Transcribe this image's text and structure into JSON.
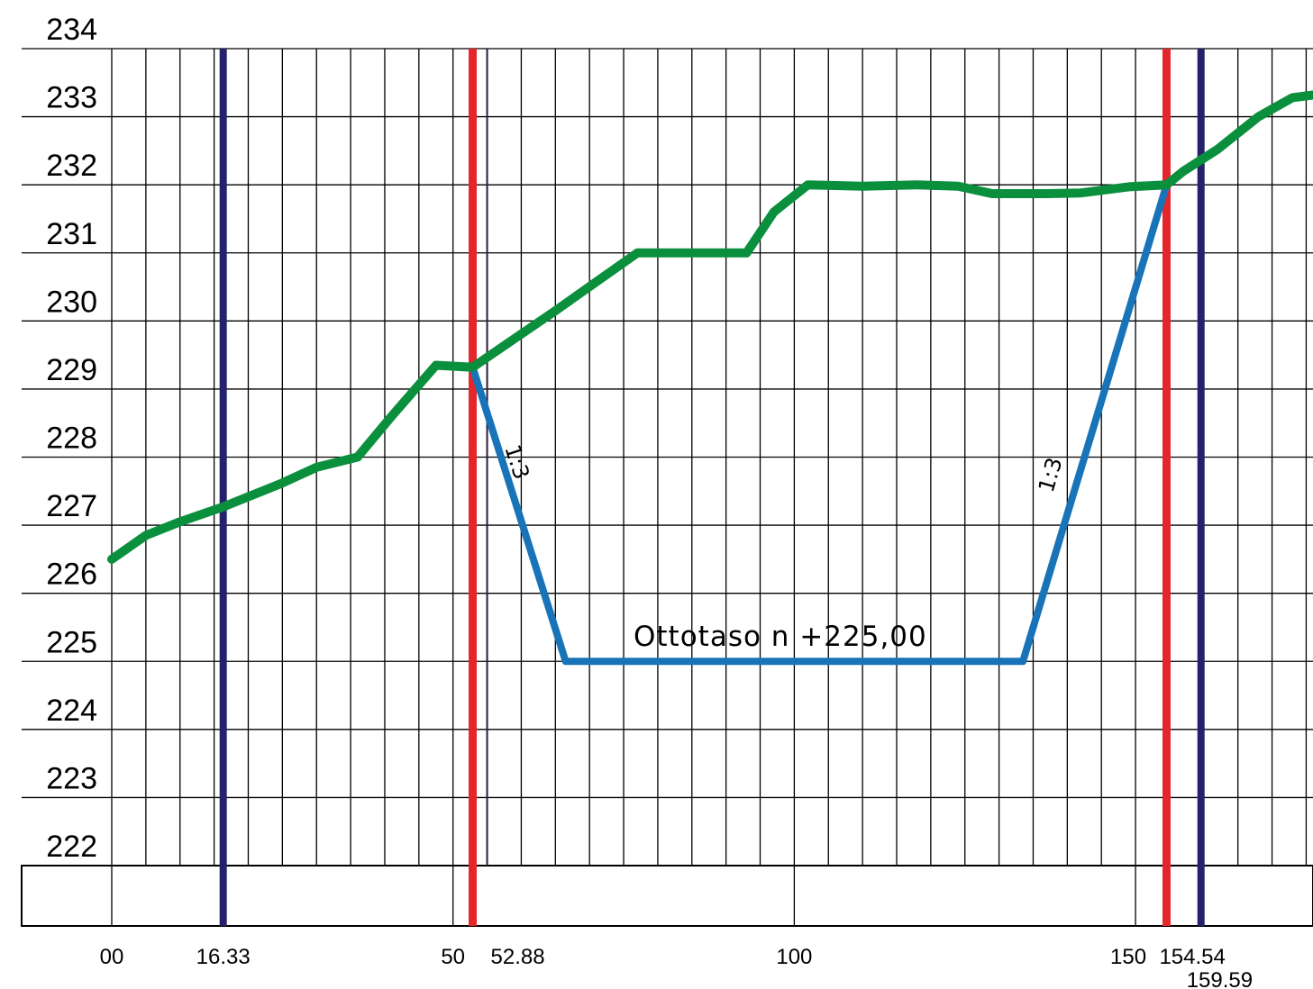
{
  "diagram": {
    "y_axis": {
      "min": 222,
      "max": 234,
      "tick_labels": [
        "234",
        "233",
        "232",
        "231",
        "230",
        "229",
        "228",
        "227",
        "226",
        "225",
        "224",
        "223",
        "222"
      ]
    },
    "x_axis": {
      "min": 0,
      "max": 176,
      "tick_labels": [
        {
          "value": 0,
          "label": "00"
        },
        {
          "value": 16.33,
          "label": "16.33"
        },
        {
          "value": 50,
          "label": "50"
        },
        {
          "value": 52.88,
          "label": "52.88"
        },
        {
          "value": 100,
          "label": "100"
        },
        {
          "value": 150,
          "label": "150"
        },
        {
          "value": 154.54,
          "label": "154.54"
        },
        {
          "value": 159.59,
          "label": "159.59"
        }
      ]
    },
    "ground_profile": {
      "color": "#0a8f3c",
      "points": [
        [
          0,
          226.5
        ],
        [
          5,
          226.85
        ],
        [
          10,
          227.05
        ],
        [
          16.33,
          227.27
        ],
        [
          25,
          227.62
        ],
        [
          30,
          227.85
        ],
        [
          36,
          228.0
        ],
        [
          41,
          228.6
        ],
        [
          47.5,
          229.35
        ],
        [
          52.88,
          229.32
        ],
        [
          65,
          230.15
        ],
        [
          77,
          231.0
        ],
        [
          83,
          231.0
        ],
        [
          93,
          231.0
        ],
        [
          97,
          231.6
        ],
        [
          102,
          232.0
        ],
        [
          110,
          231.98
        ],
        [
          118,
          232.0
        ],
        [
          124,
          231.98
        ],
        [
          129,
          231.87
        ],
        [
          137,
          231.87
        ],
        [
          142,
          231.88
        ],
        [
          149,
          231.97
        ],
        [
          154.54,
          232.0
        ],
        [
          157,
          232.2
        ],
        [
          162,
          232.52
        ],
        [
          168,
          233.0
        ],
        [
          173,
          233.28
        ],
        [
          176,
          233.32
        ]
      ]
    },
    "excavation_profile": {
      "color": "#1873b8",
      "points": [
        [
          52.88,
          229.32
        ],
        [
          66.5,
          225.0
        ],
        [
          133.5,
          225.0
        ],
        [
          154.54,
          232.0
        ]
      ]
    },
    "vertical_markers": [
      {
        "x": 16.33,
        "color": "#25216b",
        "type": "navy"
      },
      {
        "x": 52.88,
        "color": "#e4262a",
        "type": "red"
      },
      {
        "x": 154.54,
        "color": "#e4262a",
        "type": "red"
      },
      {
        "x": 159.59,
        "color": "#25216b",
        "type": "navy"
      }
    ],
    "annotations": {
      "bottom_level": "Ottotaso n +225,00",
      "left_slope": "1:3",
      "right_slope": "1:3"
    }
  }
}
